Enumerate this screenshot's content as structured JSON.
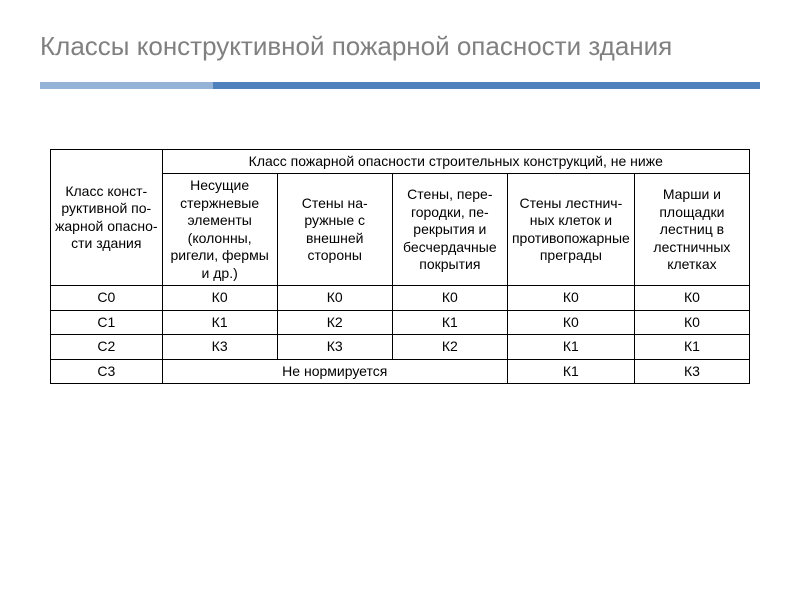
{
  "title": "Классы конструктивной пожарной опасности здания",
  "colors": {
    "title_color": "#808080",
    "divider_short": "#95b3d7",
    "divider_long": "#4f81bd",
    "table_border": "#000000",
    "text": "#000000",
    "background": "#ffffff"
  },
  "table": {
    "header_main": "Класс конст-руктивной по-жарной опасно-сти здания",
    "header_group": "Класс пожарной опасности строительных конструкций, не ниже",
    "sub_headers": [
      "Несущие стержневые элементы (колонны, ригели, фермы и др.)",
      "Стены на-ружные с внешней стороны",
      "Стены, пере-городки, пе-рекрытия и бесчердачные покрытия",
      "Стены лестнич-ных клеток и противопожарные преграды",
      "Марши и площадки лестниц в лестничных клетках"
    ],
    "rows": [
      {
        "label": "C0",
        "cells": [
          "К0",
          "К0",
          "К0",
          "К0",
          "К0"
        ]
      },
      {
        "label": "C1",
        "cells": [
          "К1",
          "К2",
          "К1",
          "К0",
          "К0"
        ]
      },
      {
        "label": "C2",
        "cells": [
          "К3",
          "К3",
          "К2",
          "К1",
          "К1"
        ]
      }
    ],
    "row_c3": {
      "label": "C3",
      "span_text": "Не нормируется",
      "cell4": "К1",
      "cell5": "К3"
    }
  },
  "typography": {
    "title_fontsize": 26,
    "table_fontsize": 14
  }
}
